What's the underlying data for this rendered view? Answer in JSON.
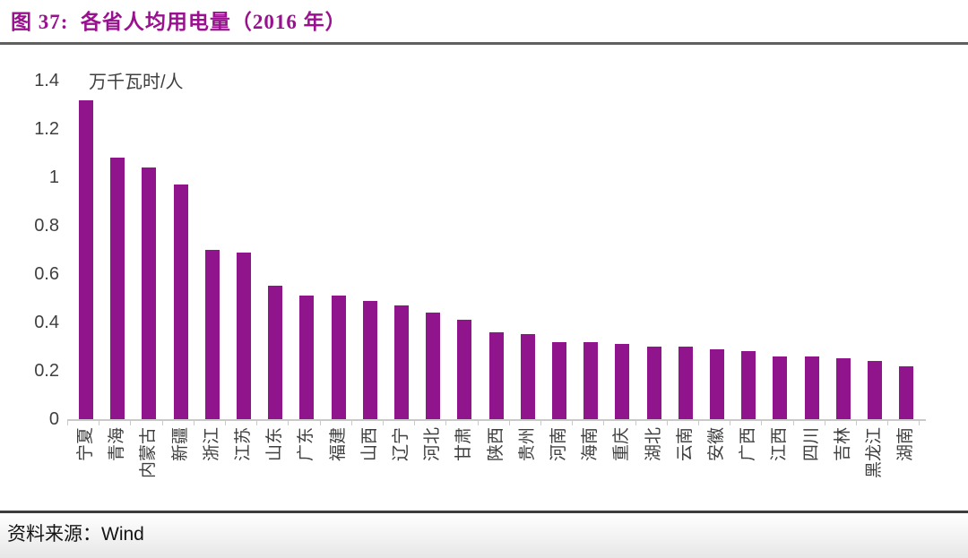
{
  "header": {
    "title": "图 37:  各省人均用电量（2016 年）"
  },
  "footer": {
    "source_label": "资料来源：",
    "source_value": "Wind"
  },
  "colors": {
    "brand_purple": "#99118F",
    "bar_purple": "#90148C",
    "axis_text": "#3f3f3f",
    "axis_line": "#c9c9c9",
    "title_rule": "#5f5f5f",
    "bottom_rule": "#3d3d3d"
  },
  "chart_data": {
    "type": "bar",
    "title": "图 37:  各省人均用电量（2016 年）",
    "unit_label": "万千瓦时/人",
    "xlabel": "",
    "ylabel": "万千瓦时/人",
    "ylim": [
      0,
      1.4
    ],
    "grid": false,
    "legend": "none",
    "y_ticks": [
      "0",
      "0.2",
      "0.4",
      "0.6",
      "0.8",
      "1",
      "1.2",
      "1.4"
    ],
    "bar_color": "#90148C",
    "categories": [
      "宁夏",
      "青海",
      "内蒙古",
      "新疆",
      "浙江",
      "江苏",
      "山东",
      "广东",
      "福建",
      "山西",
      "辽宁",
      "河北",
      "甘肃",
      "陕西",
      "贵州",
      "河南",
      "海南",
      "重庆",
      "湖北",
      "云南",
      "安徽",
      "广西",
      "江西",
      "四川",
      "吉林",
      "黑龙江",
      "湖南"
    ],
    "values": [
      1.32,
      1.08,
      1.04,
      0.97,
      0.7,
      0.69,
      0.55,
      0.51,
      0.51,
      0.49,
      0.47,
      0.44,
      0.41,
      0.36,
      0.35,
      0.32,
      0.32,
      0.31,
      0.3,
      0.3,
      0.29,
      0.28,
      0.26,
      0.26,
      0.25,
      0.24,
      0.22
    ]
  }
}
